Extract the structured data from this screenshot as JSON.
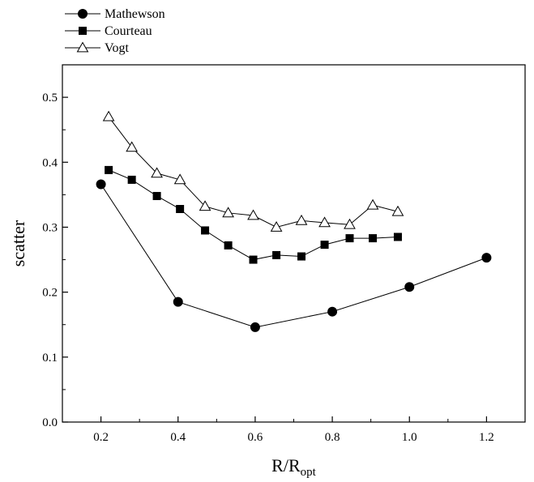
{
  "chart_data": {
    "type": "line",
    "xlabel": "R/R",
    "xlabel_sub": "opt",
    "ylabel": "scatter",
    "xlim": [
      0.1,
      1.3
    ],
    "ylim": [
      0.0,
      0.55
    ],
    "x_ticks": [
      "0.2",
      "0.4",
      "0.6",
      "0.8",
      "1.0",
      "1.2"
    ],
    "y_ticks": [
      "0.0",
      "0.1",
      "0.2",
      "0.3",
      "0.4",
      "0.5"
    ],
    "x_tick_values": [
      0.2,
      0.4,
      0.6,
      0.8,
      1.0,
      1.2
    ],
    "y_tick_values": [
      0.0,
      0.1,
      0.2,
      0.3,
      0.4,
      0.5
    ],
    "grid": false,
    "legend_position": "top-left, outside plot",
    "series": [
      {
        "name": "Mathewson",
        "marker": "circle-filled",
        "color": "#000000",
        "x": [
          0.2,
          0.4,
          0.6,
          0.8,
          1.0,
          1.2
        ],
        "y": [
          0.366,
          0.185,
          0.146,
          0.17,
          0.208,
          0.253
        ]
      },
      {
        "name": "Courteau",
        "marker": "square-filled",
        "color": "#000000",
        "x": [
          0.22,
          0.28,
          0.345,
          0.405,
          0.47,
          0.53,
          0.595,
          0.655,
          0.72,
          0.78,
          0.845,
          0.905,
          0.97
        ],
        "y": [
          0.388,
          0.373,
          0.348,
          0.328,
          0.295,
          0.272,
          0.25,
          0.257,
          0.255,
          0.273,
          0.283,
          0.283,
          0.285
        ]
      },
      {
        "name": "Vogt",
        "marker": "triangle-open",
        "color": "#000000",
        "x": [
          0.22,
          0.28,
          0.345,
          0.405,
          0.47,
          0.53,
          0.595,
          0.655,
          0.72,
          0.78,
          0.845,
          0.905,
          0.97
        ],
        "y": [
          0.47,
          0.423,
          0.383,
          0.373,
          0.332,
          0.322,
          0.318,
          0.3,
          0.31,
          0.307,
          0.304,
          0.334,
          0.324
        ]
      }
    ]
  }
}
